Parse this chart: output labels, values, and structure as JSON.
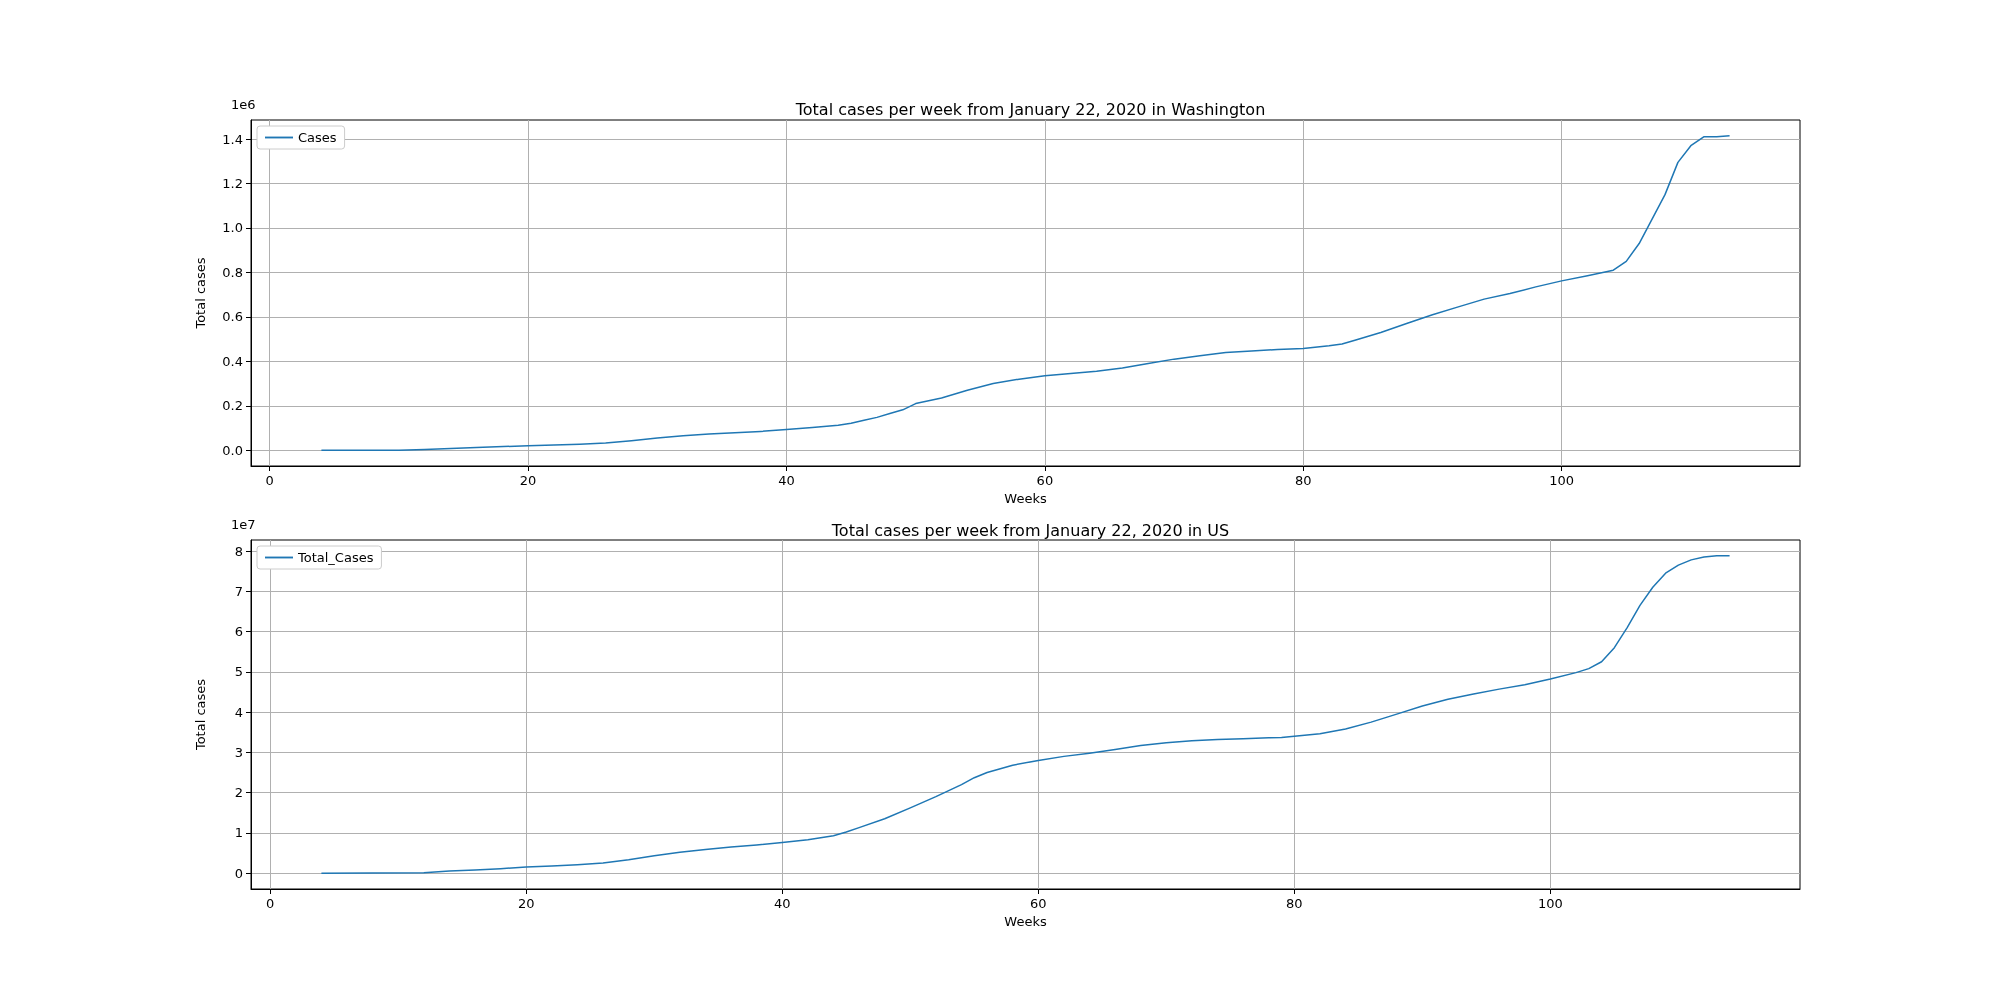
{
  "chart_data": [
    {
      "type": "line",
      "title": "Total cases per week from January 22, 2020 in Washington",
      "xlabel": "Weeks",
      "ylabel": "Total cases",
      "annotations": [
        "1e6"
      ],
      "grid": true,
      "legend": "top left",
      "marker": "none",
      "x": [
        4,
        10,
        12,
        14,
        16,
        20,
        24,
        26,
        28,
        30,
        32,
        34,
        36,
        38,
        40,
        42,
        44,
        45,
        46,
        47,
        48,
        49,
        50,
        52,
        54,
        56,
        58,
        60,
        62,
        64,
        66,
        68,
        70,
        72,
        74,
        76,
        78,
        80,
        82,
        83,
        84,
        86,
        88,
        90,
        92,
        94,
        96,
        98,
        100,
        102,
        103,
        104,
        105,
        106,
        107,
        108,
        109,
        110,
        111,
        112,
        113
      ],
      "series": [
        {
          "name": "Cases",
          "color": "#1f77b4",
          "values": [
            0,
            0,
            0.003,
            0.008,
            0.013,
            0.02,
            0.027,
            0.033,
            0.043,
            0.055,
            0.065,
            0.073,
            0.079,
            0.085,
            0.093,
            0.102,
            0.113,
            0.122,
            0.135,
            0.148,
            0.165,
            0.182,
            0.21,
            0.235,
            0.27,
            0.3,
            0.32,
            0.335,
            0.345,
            0.355,
            0.37,
            0.39,
            0.41,
            0.425,
            0.44,
            0.447,
            0.453,
            0.458,
            0.47,
            0.478,
            0.495,
            0.53,
            0.57,
            0.61,
            0.645,
            0.68,
            0.705,
            0.735,
            0.762,
            0.785,
            0.797,
            0.81,
            0.85,
            0.93,
            1.04,
            1.15,
            1.295,
            1.37,
            1.41,
            1.41,
            1.415
          ]
        }
      ],
      "xlim": [
        -1.45,
        118.45
      ],
      "xticks": [
        0,
        20,
        40,
        60,
        80,
        100
      ],
      "ylim": [
        -0.07075,
        1.48575
      ],
      "yticks": [
        {
          "value": 0,
          "label": "0.0"
        },
        {
          "value": 0.2,
          "label": "0.2"
        },
        {
          "value": 0.4,
          "label": "0.4"
        },
        {
          "value": 0.6,
          "label": "0.6"
        },
        {
          "value": 0.8,
          "label": "0.8"
        },
        {
          "value": 1,
          "label": "1.0"
        },
        {
          "value": 1.2,
          "label": "1.2"
        },
        {
          "value": 1.4,
          "label": "1.4"
        }
      ]
    },
    {
      "type": "line",
      "title": "Total cases per week from January 22, 2020 in US",
      "xlabel": "Weeks",
      "ylabel": "Total cases",
      "annotations": [
        "1e7"
      ],
      "grid": true,
      "legend": "top left",
      "marker": "none",
      "x": [
        4,
        12,
        14,
        16,
        18,
        20,
        22,
        24,
        26,
        28,
        30,
        32,
        34,
        36,
        38,
        40,
        42,
        44,
        45,
        46,
        48,
        50,
        52,
        54,
        55,
        56,
        58,
        60,
        62,
        64,
        66,
        68,
        70,
        72,
        74,
        76,
        78,
        79,
        80,
        82,
        84,
        86,
        88,
        90,
        92,
        94,
        96,
        98,
        100,
        102,
        103,
        104,
        105,
        106,
        107,
        108,
        109,
        110,
        111,
        112,
        113,
        114
      ],
      "series": [
        {
          "name": "Total_Cases",
          "color": "#1f77b4",
          "values": [
            0,
            0.01,
            0.05,
            0.08,
            0.11,
            0.15,
            0.18,
            0.21,
            0.25,
            0.33,
            0.43,
            0.52,
            0.59,
            0.65,
            0.7,
            0.76,
            0.83,
            0.93,
            1.02,
            1.13,
            1.35,
            1.62,
            1.9,
            2.2,
            2.37,
            2.5,
            2.68,
            2.8,
            2.9,
            2.98,
            3.07,
            3.17,
            3.24,
            3.29,
            3.32,
            3.34,
            3.36,
            3.37,
            3.4,
            3.46,
            3.58,
            3.75,
            3.95,
            4.15,
            4.32,
            4.45,
            4.57,
            4.68,
            4.82,
            4.98,
            5.08,
            5.25,
            5.6,
            6.1,
            6.65,
            7.1,
            7.45,
            7.65,
            7.78,
            7.85,
            7.88,
            7.88
          ]
        }
      ],
      "xlim": [
        -1.5,
        119.5
      ],
      "xticks": [
        0,
        20,
        40,
        60,
        80,
        100
      ],
      "ylim": [
        -0.394,
        8.274
      ],
      "yticks": [
        0,
        1,
        2,
        3,
        4,
        5,
        6,
        7,
        8
      ]
    }
  ]
}
